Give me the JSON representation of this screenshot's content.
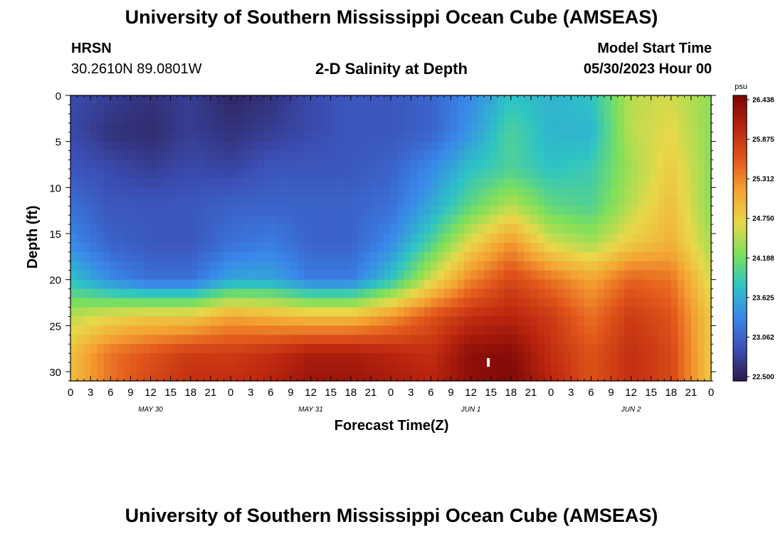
{
  "header": {
    "title": "University of Southern Mississippi Ocean Cube (AMSEAS)",
    "station": "HRSN",
    "coords": "30.2610N  89.0801W",
    "subtitle": "2-D Salinity at Depth",
    "model_start_label": "Model Start Time",
    "model_start_value": "05/30/2023 Hour 00"
  },
  "footer": {
    "title": "University of Southern Mississippi Ocean Cube (AMSEAS)"
  },
  "chart_data": {
    "type": "heatmap",
    "title": "2-D Salinity at Depth",
    "xlabel": "Forecast Time(Z)",
    "ylabel": "Depth (ft)",
    "x_hours_range": [
      0,
      96
    ],
    "x_tick_step_hours": 3,
    "x_tick_labels": [
      "0",
      "3",
      "6",
      "9",
      "12",
      "15",
      "18",
      "21",
      "0",
      "3",
      "6",
      "9",
      "12",
      "15",
      "18",
      "21",
      "0",
      "3",
      "6",
      "9",
      "12",
      "15",
      "18",
      "21",
      "0",
      "3",
      "6",
      "9",
      "12",
      "15",
      "18",
      "21",
      "0"
    ],
    "day_labels": [
      {
        "label": "MAY 30",
        "hour": 12
      },
      {
        "label": "MAY 31",
        "hour": 36
      },
      {
        "label": "JUN 1",
        "hour": 60
      },
      {
        "label": "JUN 2",
        "hour": 84
      }
    ],
    "y_ticks": [
      0,
      5,
      10,
      15,
      20,
      25,
      30
    ],
    "ylim": [
      0,
      31
    ],
    "colorbar": {
      "unit": "psu",
      "min": 22.5,
      "max": 26.438,
      "tick_labels": [
        "26.438",
        "25.875",
        "25.312",
        "24.750",
        "24.188",
        "23.625",
        "23.062",
        "22.500"
      ],
      "colors": [
        "#2c1a4a",
        "#3b4fb5",
        "#3a86ea",
        "#2ec4c4",
        "#7ee05a",
        "#e9d84a",
        "#f4a233",
        "#e2561b",
        "#b8240e",
        "#7a0606"
      ]
    },
    "grid_hours": [
      0,
      6,
      12,
      18,
      24,
      30,
      36,
      42,
      48,
      54,
      60,
      66,
      72,
      78,
      84,
      90,
      96
    ],
    "grid_depths": [
      0,
      4,
      8,
      12,
      16,
      20,
      24,
      28,
      31
    ],
    "salinity_psu": [
      [
        22.9,
        22.8,
        22.7,
        22.8,
        22.6,
        22.7,
        22.9,
        23.0,
        23.0,
        23.1,
        23.4,
        23.8,
        23.7,
        23.8,
        24.5,
        24.6,
        24.3
      ],
      [
        22.9,
        22.7,
        22.65,
        22.8,
        22.7,
        22.8,
        22.9,
        23.0,
        23.0,
        23.1,
        23.5,
        24.0,
        23.7,
        23.7,
        24.5,
        24.7,
        24.3
      ],
      [
        23.0,
        22.9,
        22.8,
        22.9,
        22.85,
        23.0,
        23.0,
        23.0,
        23.1,
        23.4,
        23.8,
        24.0,
        23.8,
        23.9,
        24.4,
        24.8,
        24.3
      ],
      [
        23.2,
        23.0,
        23.0,
        23.0,
        23.1,
        23.1,
        23.1,
        23.1,
        23.2,
        23.6,
        24.1,
        24.5,
        24.1,
        24.0,
        24.5,
        24.9,
        24.3
      ],
      [
        23.4,
        23.1,
        23.0,
        23.0,
        23.2,
        23.3,
        23.1,
        23.1,
        23.4,
        24.0,
        24.7,
        25.2,
        24.6,
        24.4,
        24.8,
        25.0,
        24.4
      ],
      [
        23.8,
        23.4,
        23.2,
        23.2,
        23.6,
        23.6,
        23.3,
        23.3,
        23.8,
        24.6,
        25.3,
        25.7,
        25.4,
        25.1,
        25.5,
        25.4,
        24.6
      ],
      [
        24.5,
        24.7,
        24.8,
        24.8,
        25.1,
        25.0,
        24.9,
        24.9,
        25.2,
        25.6,
        25.9,
        26.0,
        25.8,
        25.4,
        25.8,
        25.6,
        24.8
      ],
      [
        24.9,
        25.4,
        25.6,
        25.8,
        25.8,
        25.9,
        26.1,
        26.1,
        26.0,
        25.9,
        26.3,
        26.35,
        25.9,
        25.6,
        25.9,
        25.7,
        24.8
      ],
      [
        24.9,
        25.4,
        25.7,
        25.9,
        25.9,
        26.0,
        26.2,
        26.2,
        26.1,
        26.0,
        26.3,
        26.4,
        26.0,
        25.6,
        25.9,
        25.7,
        24.8
      ]
    ]
  }
}
